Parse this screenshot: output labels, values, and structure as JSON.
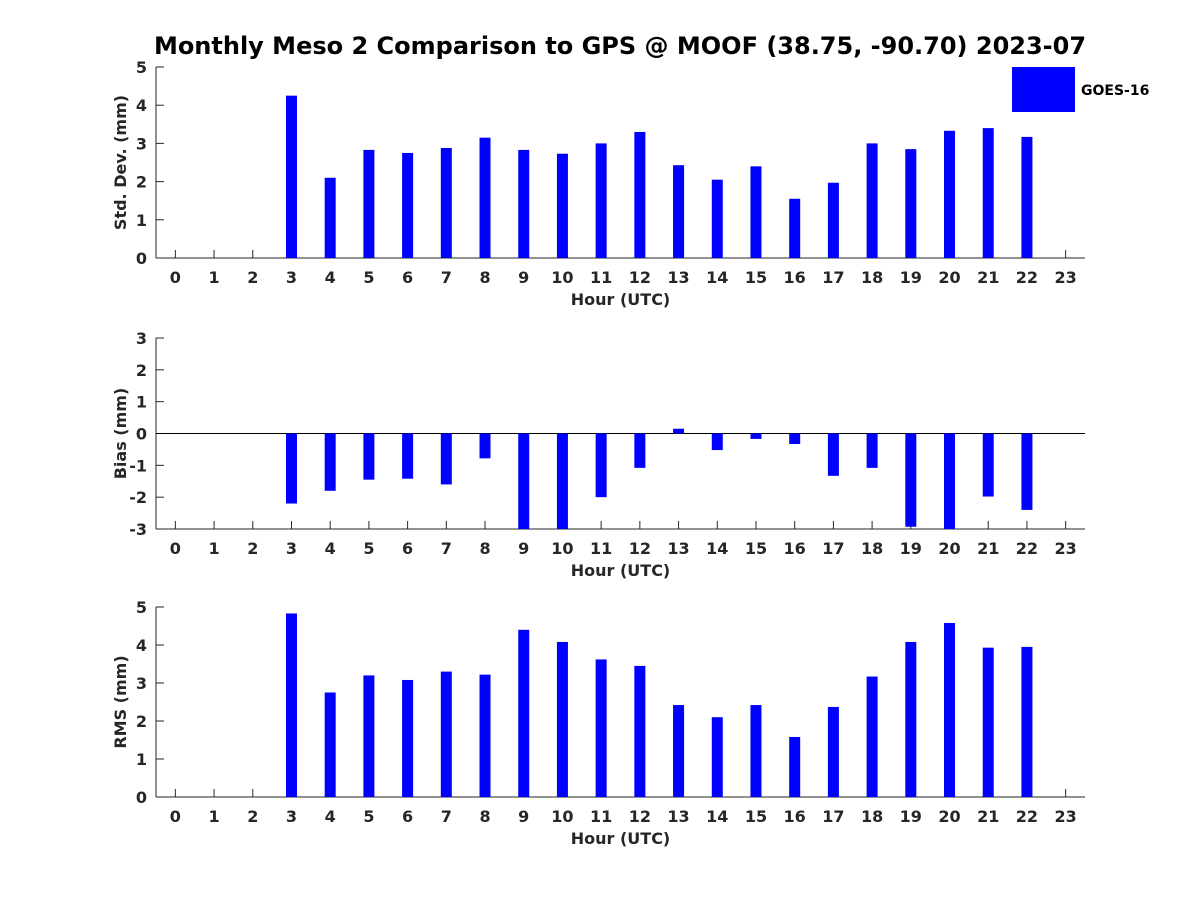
{
  "title": "Monthly Meso 2 Comparison to GPS @ MOOF (38.75, -90.70) 2023-07",
  "legend": {
    "label": "GOES-16",
    "color": "#0000ff",
    "placement": "top-right"
  },
  "chart_data": [
    {
      "type": "bar",
      "name": "std",
      "xlabel": "Hour (UTC)",
      "ylabel": "Std. Dev. (mm)",
      "ylim": [
        0,
        5
      ],
      "yticks": [
        0,
        1,
        2,
        3,
        4,
        5
      ],
      "xlim": [
        -0.5,
        23.5
      ],
      "categories": [
        0,
        1,
        2,
        3,
        4,
        5,
        6,
        7,
        8,
        9,
        10,
        11,
        12,
        13,
        14,
        15,
        16,
        17,
        18,
        19,
        20,
        21,
        22,
        23
      ],
      "series": [
        {
          "name": "GOES-16",
          "color": "#0000ff",
          "values": [
            null,
            null,
            null,
            4.25,
            2.1,
            2.83,
            2.75,
            2.88,
            3.15,
            2.83,
            2.73,
            3.0,
            3.3,
            2.43,
            2.05,
            2.4,
            1.55,
            1.97,
            3.0,
            2.85,
            3.33,
            3.4,
            3.17,
            null
          ]
        }
      ]
    },
    {
      "type": "bar",
      "name": "bias",
      "xlabel": "Hour (UTC)",
      "ylabel": "Bias (mm)",
      "ylim": [
        -3,
        3
      ],
      "yticks": [
        -3,
        -2,
        -1,
        0,
        1,
        2,
        3
      ],
      "zero_line": true,
      "xlim": [
        -0.5,
        23.5
      ],
      "categories": [
        0,
        1,
        2,
        3,
        4,
        5,
        6,
        7,
        8,
        9,
        10,
        11,
        12,
        13,
        14,
        15,
        16,
        17,
        18,
        19,
        20,
        21,
        22,
        23
      ],
      "series": [
        {
          "name": "GOES-16",
          "color": "#0000ff",
          "values": [
            null,
            null,
            null,
            -2.2,
            -1.8,
            -1.45,
            -1.42,
            -1.6,
            -0.78,
            -3.1,
            -3.3,
            -2.0,
            -1.08,
            0.15,
            -0.52,
            -0.17,
            -0.33,
            -1.33,
            -1.08,
            -2.93,
            -3.2,
            -1.98,
            -2.4,
            null
          ]
        }
      ]
    },
    {
      "type": "bar",
      "name": "rms",
      "xlabel": "Hour (UTC)",
      "ylabel": "RMS (mm)",
      "ylim": [
        0,
        5
      ],
      "yticks": [
        0,
        1,
        2,
        3,
        4,
        5
      ],
      "xlim": [
        -0.5,
        23.5
      ],
      "categories": [
        0,
        1,
        2,
        3,
        4,
        5,
        6,
        7,
        8,
        9,
        10,
        11,
        12,
        13,
        14,
        15,
        16,
        17,
        18,
        19,
        20,
        21,
        22,
        23
      ],
      "series": [
        {
          "name": "GOES-16",
          "color": "#0000ff",
          "values": [
            null,
            null,
            null,
            4.83,
            2.75,
            3.2,
            3.08,
            3.3,
            3.22,
            4.4,
            4.08,
            3.62,
            3.45,
            2.42,
            2.1,
            2.42,
            1.58,
            2.37,
            3.17,
            4.08,
            4.58,
            3.93,
            3.95,
            null
          ]
        }
      ]
    }
  ]
}
